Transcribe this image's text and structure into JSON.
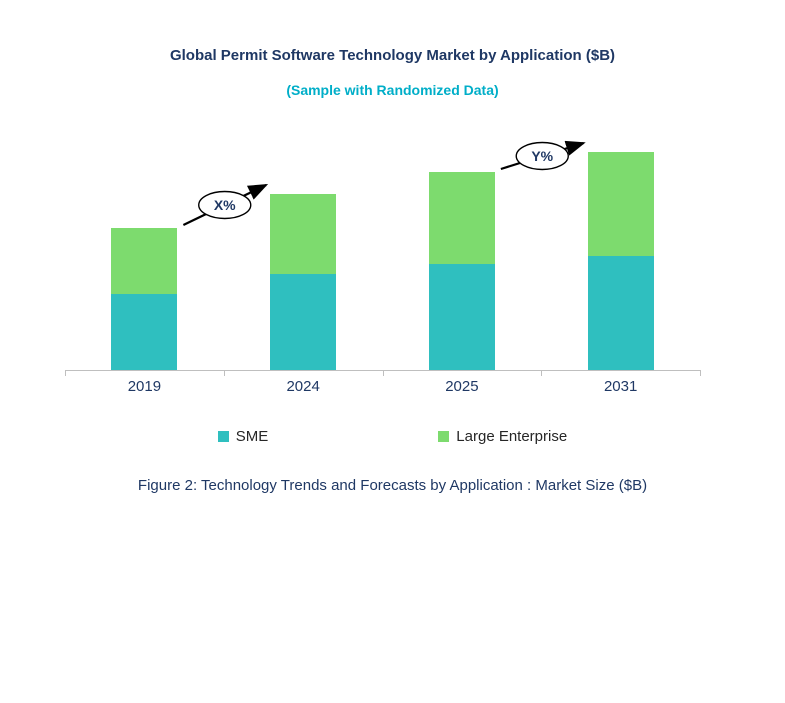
{
  "chart_data": {
    "type": "stacked-bar",
    "title": "Global Permit Software Technology Market by Application ($B)",
    "subtitle": "(Sample with Randomized Data)",
    "categories": [
      "2019",
      "2024",
      "2025",
      "2031"
    ],
    "series": [
      {
        "name": "SME",
        "color": "#2FBFBF",
        "values": [
          3.8,
          4.8,
          5.3,
          5.7
        ]
      },
      {
        "name": "Large Enterprise",
        "color": "#7DDB6E",
        "values": [
          3.3,
          4.0,
          4.6,
          5.2
        ]
      }
    ],
    "ylim": [
      0,
      12.5
    ],
    "y_axis_labels_visible": false,
    "gridlines": false,
    "legend_position": "bottom",
    "annotations": [
      {
        "label": "X%",
        "from_category": "2019",
        "to_category": "2024"
      },
      {
        "label": "Y%",
        "from_category": "2025",
        "to_category": "2031"
      }
    ]
  },
  "caption": "Figure 2: Technology Trends and Forecasts by Application : Market Size ($B)",
  "colors": {
    "title": "#1F3864",
    "subtitle": "#00AEC8",
    "axis_label": "#1F3864",
    "axis_line": "#BFBFBF",
    "caption": "#1F3864",
    "annotation_text": "#1F3864",
    "arrow": "#000000"
  }
}
